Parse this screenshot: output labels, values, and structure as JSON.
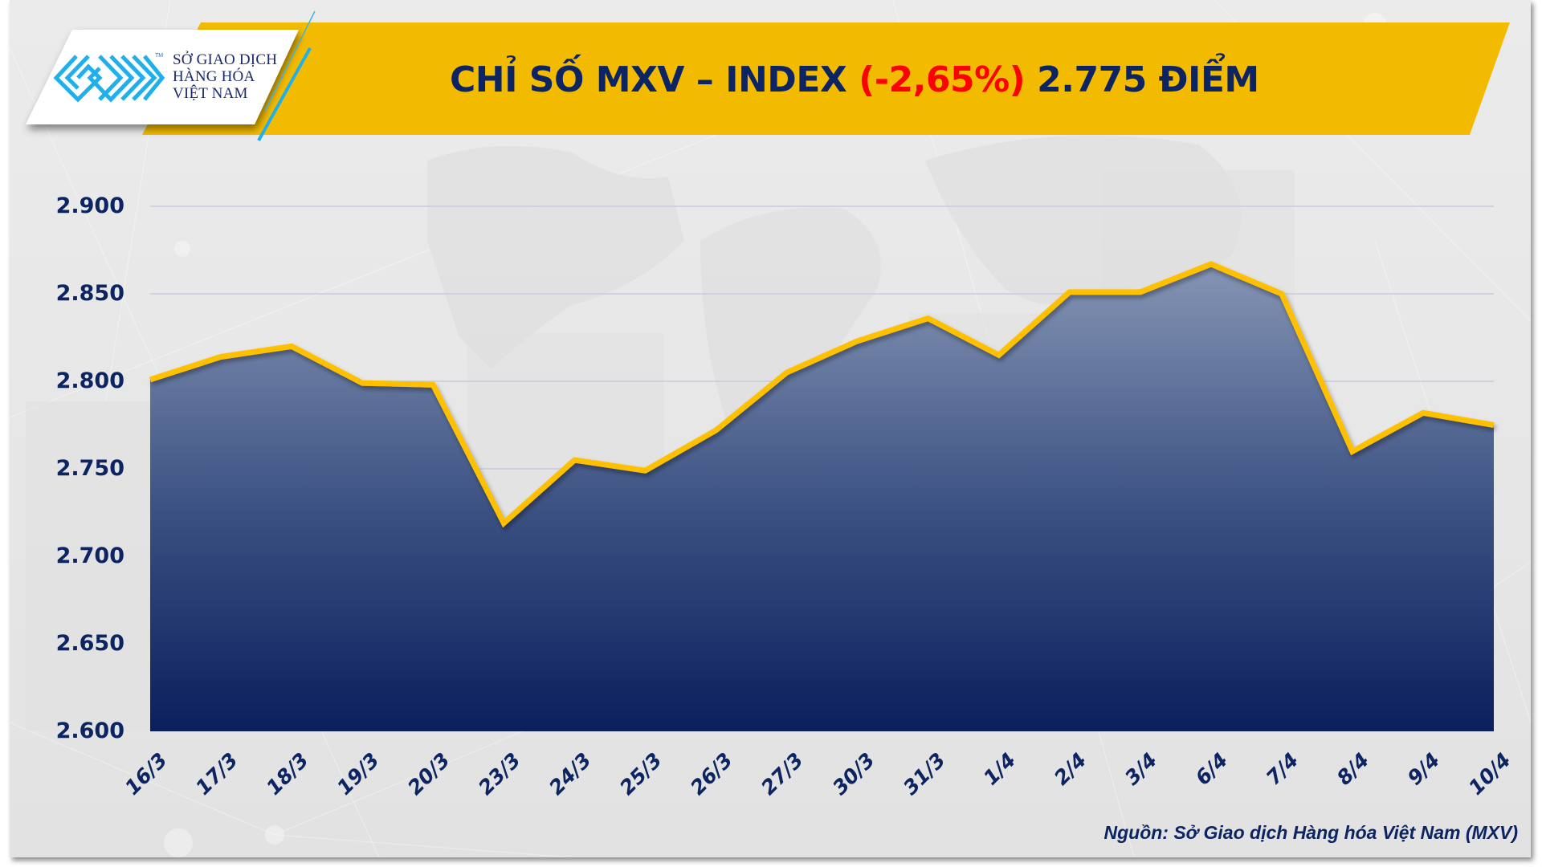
{
  "header": {
    "logo": {
      "icon": "mxv-maze-logo-icon",
      "tm": "TM",
      "lines": [
        "SỞ GIAO DỊCH",
        "HÀNG HÓA",
        "VIỆT NAM"
      ]
    },
    "title_prefix": "CHỈ SỐ MXV – INDEX",
    "title_change": "(-2,65%)",
    "title_suffix": "2.775 ĐIỂM"
  },
  "colors": {
    "navy": "#0d2462",
    "change_negative": "#ff0000",
    "banner_yellow": "#f3bb00",
    "line": "#ffc000",
    "logo_cyan": "#1fb0ec",
    "area_top": "#8c9bb9",
    "area_bottom": "#0a1f5c",
    "gridline": "#c6ccd8"
  },
  "footer": {
    "source": "Nguồn: Sở Giao dịch Hàng hóa Việt Nam (MXV)"
  },
  "chart_data": {
    "type": "area",
    "title": "CHỈ SỐ MXV – INDEX (-2,65%) 2.775 ĐIỂM",
    "xlabel": "",
    "ylabel": "",
    "categories": [
      "16/3",
      "17/3",
      "18/3",
      "19/3",
      "20/3",
      "23/3",
      "24/3",
      "25/3",
      "26/3",
      "27/3",
      "30/3",
      "31/3",
      "1/4",
      "2/4",
      "3/4",
      "6/4",
      "7/4",
      "8/4",
      "9/4",
      "10/4"
    ],
    "series": [
      {
        "name": "MXV-Index",
        "values": [
          2801,
          2814,
          2820,
          2799,
          2798,
          2719,
          2755,
          2749,
          2772,
          2805,
          2823,
          2836,
          2815,
          2851,
          2851,
          2867,
          2850,
          2760,
          2782,
          2775
        ]
      }
    ],
    "ylim": [
      2600,
      2900
    ],
    "yticks": [
      2900,
      2850,
      2800,
      2750,
      2700,
      2650,
      2600
    ],
    "ytick_labels": [
      "2.900",
      "2.850",
      "2.800",
      "2.750",
      "2.700",
      "2.650",
      "2.600"
    ],
    "grid": true,
    "legend": "none"
  }
}
